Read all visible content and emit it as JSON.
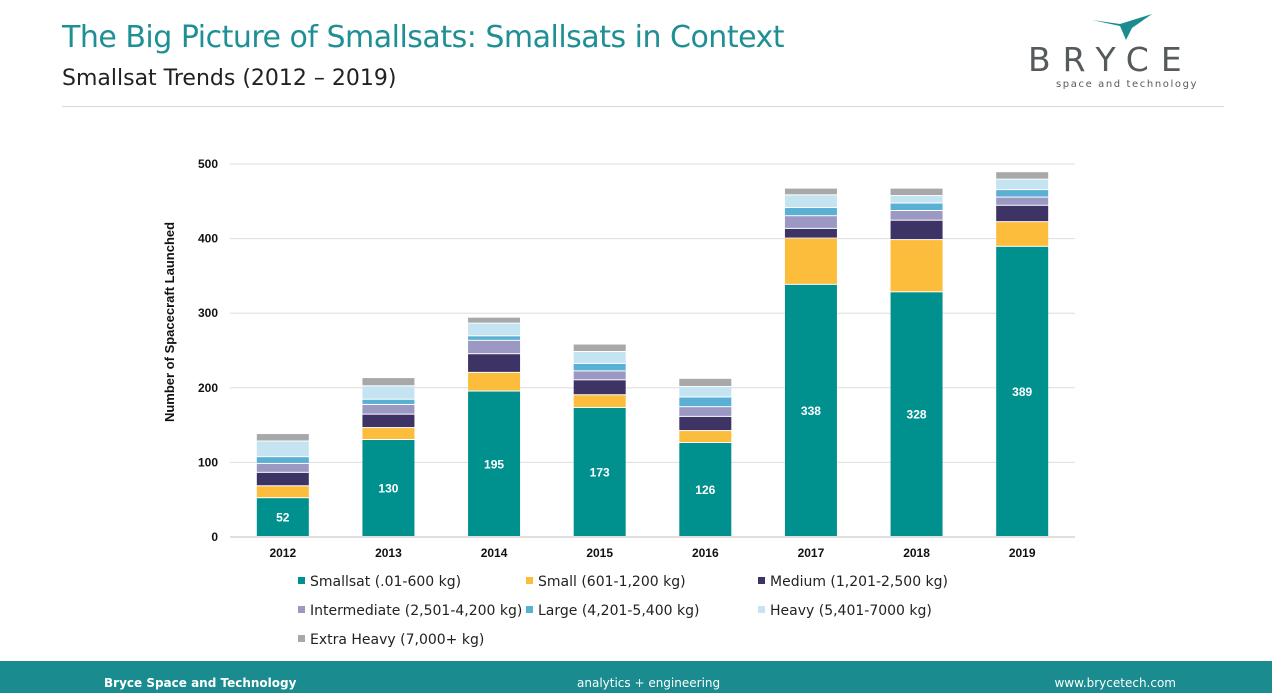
{
  "header": {
    "title": "The Big Picture of Smallsats: Smallsats in Context",
    "subtitle": "Smallsat Trends (2012 – 2019)"
  },
  "logo": {
    "wordmark": "BRYCE",
    "tagline": "space and technology",
    "mark_color": "#1a8b8f"
  },
  "chart_data": {
    "type": "bar",
    "stacked": true,
    "categories": [
      "2012",
      "2013",
      "2014",
      "2015",
      "2016",
      "2017",
      "2018",
      "2019"
    ],
    "ylabel": "Number of Spacecraft Launched",
    "xlabel": "",
    "ylim": [
      0,
      500
    ],
    "yticks": [
      0,
      100,
      200,
      300,
      400,
      500
    ],
    "grid": true,
    "legend_position": "bottom",
    "series": [
      {
        "name": "Smallsat (.01-600 kg)",
        "color": "#00918f",
        "values": [
          52,
          130,
          195,
          173,
          126,
          338,
          328,
          389
        ],
        "labels": [
          "52",
          "130",
          "195",
          "173",
          "126",
          "338",
          "328",
          "389"
        ]
      },
      {
        "name": "Small (601-1,200 kg)",
        "color": "#fbbd3b",
        "values": [
          16,
          16,
          25,
          17,
          16,
          62,
          70,
          33
        ]
      },
      {
        "name": "Medium (1,201-2,500 kg)",
        "color": "#3d3364",
        "values": [
          18,
          18,
          25,
          20,
          19,
          13,
          26,
          22
        ]
      },
      {
        "name": "Intermediate (2,501-4,200 kg)",
        "color": "#9b98c3",
        "values": [
          12,
          13,
          18,
          12,
          13,
          17,
          13,
          11
        ]
      },
      {
        "name": "Large (4,201-5,400 kg)",
        "color": "#5aafd4",
        "values": [
          9,
          7,
          6,
          10,
          13,
          11,
          10,
          10
        ]
      },
      {
        "name": "Heavy (5,401-7000 kg)",
        "color": "#c4e4f1",
        "values": [
          21,
          18,
          17,
          16,
          14,
          17,
          10,
          14
        ]
      },
      {
        "name": "Extra Heavy (7,000+ kg)",
        "color": "#a6a8aa",
        "values": [
          10,
          11,
          8,
          10,
          11,
          9,
          10,
          10
        ]
      }
    ]
  },
  "footer": {
    "left": "Bryce Space and Technology",
    "center": "analytics  +  engineering",
    "right": "www.brycetech.com"
  }
}
